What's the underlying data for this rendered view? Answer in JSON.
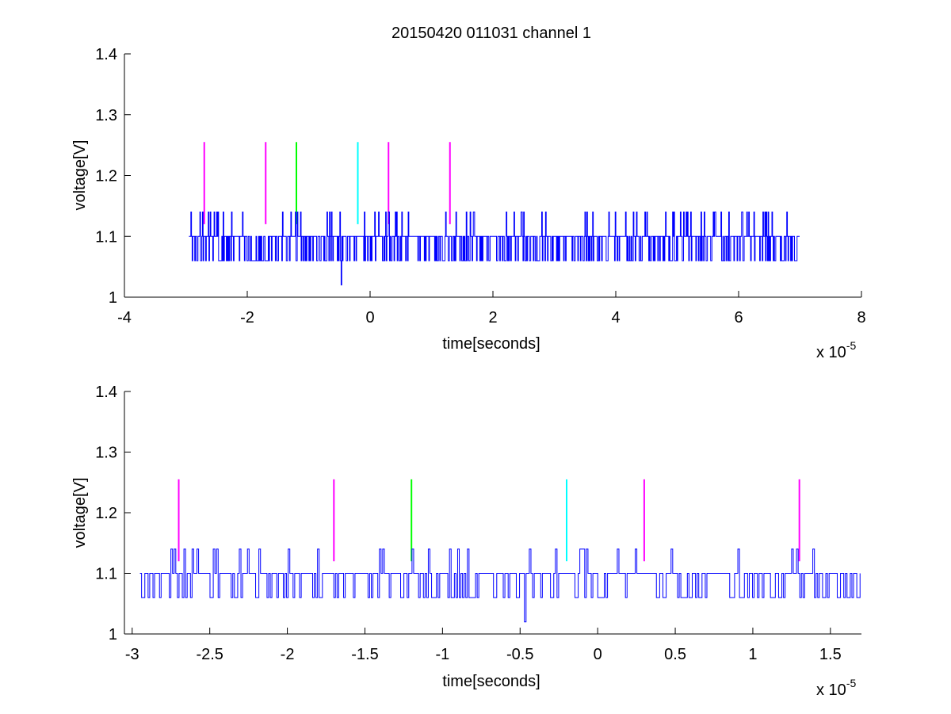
{
  "title": "20150420 011031 channel 1",
  "chart_data": [
    {
      "type": "line",
      "title": "20150420 011031 channel 1",
      "xlabel": "time[seconds]",
      "ylabel": "voltage[V]",
      "x_multiplier": "x 10",
      "x_exponent": "-5",
      "xlim": [
        -4,
        8
      ],
      "ylim": [
        1,
        1.4
      ],
      "xticks": [
        "-4",
        "-2",
        "0",
        "2",
        "4",
        "6",
        "8"
      ],
      "yticks": [
        "1",
        "1.1",
        "1.2",
        "1.3",
        "1.4"
      ],
      "signal": {
        "color": "#0000ff",
        "x_range": [
          -2.95,
          7.0
        ],
        "levels": [
          1.06,
          1.1,
          1.14
        ],
        "baseline": 1.1,
        "dip": {
          "x": -0.47,
          "y": 1.02
        }
      },
      "markers": [
        {
          "x": -2.7,
          "y0": 1.12,
          "y1": 1.255,
          "color": "#ff00ff"
        },
        {
          "x": -1.7,
          "y0": 1.12,
          "y1": 1.255,
          "color": "#ff00ff"
        },
        {
          "x": -1.2,
          "y0": 1.12,
          "y1": 1.255,
          "color": "#00ff00"
        },
        {
          "x": -0.2,
          "y0": 1.12,
          "y1": 1.255,
          "color": "#00ffff"
        },
        {
          "x": 0.3,
          "y0": 1.12,
          "y1": 1.255,
          "color": "#ff00ff"
        },
        {
          "x": 1.3,
          "y0": 1.12,
          "y1": 1.255,
          "color": "#ff00ff"
        }
      ]
    },
    {
      "type": "line",
      "xlabel": "time[seconds]",
      "ylabel": "voltage[V]",
      "x_multiplier": "x 10",
      "x_exponent": "-5",
      "xlim": [
        -3.05,
        1.7
      ],
      "ylim": [
        1,
        1.4
      ],
      "xticks": [
        "-3",
        "-2.5",
        "-2",
        "-1.5",
        "-1",
        "-0.5",
        "0",
        "0.5",
        "1",
        "1.5"
      ],
      "xtick_values": [
        -3,
        -2.5,
        -2,
        -1.5,
        -1,
        -0.5,
        0,
        0.5,
        1,
        1.5
      ],
      "yticks": [
        "1",
        "1.1",
        "1.2",
        "1.3",
        "1.4"
      ],
      "signal": {
        "color": "#0000ff",
        "x_range": [
          -2.95,
          1.7
        ],
        "levels": [
          1.06,
          1.1,
          1.14
        ],
        "baseline": 1.1,
        "dip": {
          "x": -0.47,
          "y": 1.02
        }
      },
      "markers": [
        {
          "x": -2.7,
          "y0": 1.12,
          "y1": 1.255,
          "color": "#ff00ff"
        },
        {
          "x": -1.7,
          "y0": 1.12,
          "y1": 1.255,
          "color": "#ff00ff"
        },
        {
          "x": -1.2,
          "y0": 1.12,
          "y1": 1.255,
          "color": "#00ff00"
        },
        {
          "x": -0.2,
          "y0": 1.12,
          "y1": 1.255,
          "color": "#00ffff"
        },
        {
          "x": 0.3,
          "y0": 1.12,
          "y1": 1.255,
          "color": "#ff00ff"
        },
        {
          "x": 1.3,
          "y0": 1.12,
          "y1": 1.255,
          "color": "#ff00ff"
        }
      ]
    }
  ]
}
